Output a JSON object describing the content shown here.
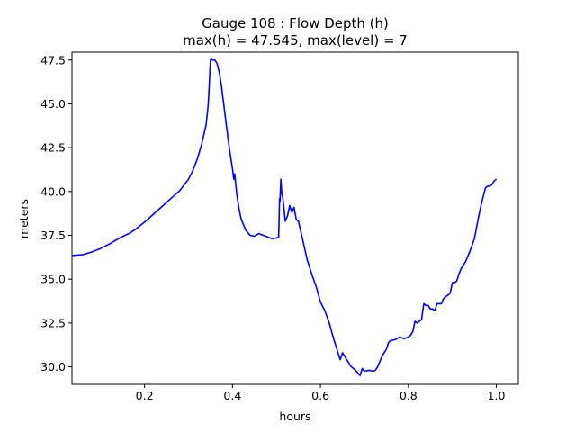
{
  "chart_data": {
    "type": "line",
    "title": "Gauge 108 : Flow Depth (h)",
    "subtitle": "max(h) =  47.545,    max(level) = 7",
    "xlabel": "hours",
    "ylabel": "meters",
    "xlim": [
      0.035,
      1.05
    ],
    "ylim": [
      29.0,
      47.95
    ],
    "xticks": [
      0.2,
      0.4,
      0.6,
      0.8,
      1.0
    ],
    "xtick_labels": [
      "0.2",
      "0.4",
      "0.6",
      "0.8",
      "1.0"
    ],
    "yticks": [
      30.0,
      32.5,
      35.0,
      37.5,
      40.0,
      42.5,
      45.0,
      47.5
    ],
    "ytick_labels": [
      "30.0",
      "32.5",
      "35.0",
      "37.5",
      "40.0",
      "42.5",
      "45.0",
      "47.5"
    ],
    "grid": false,
    "line_color": "#0000ff",
    "series": [
      {
        "x": [
          0.035,
          0.06,
          0.08,
          0.1,
          0.12,
          0.14,
          0.16,
          0.165,
          0.18,
          0.2,
          0.22,
          0.24,
          0.26,
          0.28,
          0.3,
          0.31,
          0.32,
          0.33,
          0.34,
          0.345,
          0.35,
          0.352,
          0.354,
          0.36,
          0.365,
          0.37,
          0.375,
          0.38,
          0.385,
          0.39,
          0.395,
          0.4,
          0.403,
          0.405,
          0.407,
          0.41,
          0.415,
          0.42,
          0.43,
          0.44,
          0.45,
          0.46,
          0.47,
          0.48,
          0.49,
          0.5,
          0.505,
          0.507,
          0.508,
          0.51,
          0.512,
          0.514,
          0.516,
          0.518,
          0.52,
          0.525,
          0.53,
          0.535,
          0.54,
          0.545,
          0.55,
          0.56,
          0.57,
          0.58,
          0.59,
          0.6,
          0.61,
          0.62,
          0.63,
          0.64,
          0.645,
          0.65,
          0.655,
          0.66,
          0.67,
          0.68,
          0.69,
          0.695,
          0.7,
          0.71,
          0.72,
          0.725,
          0.73,
          0.74,
          0.75,
          0.755,
          0.76,
          0.77,
          0.78,
          0.79,
          0.8,
          0.805,
          0.81,
          0.815,
          0.82,
          0.825,
          0.83,
          0.835,
          0.84,
          0.845,
          0.85,
          0.855,
          0.86,
          0.865,
          0.87,
          0.875,
          0.88,
          0.885,
          0.89,
          0.895,
          0.9,
          0.905,
          0.91,
          0.915,
          0.92,
          0.93,
          0.94,
          0.95,
          0.96,
          0.965,
          0.97,
          0.975,
          0.98,
          0.985,
          0.99,
          0.995,
          1.0
        ],
        "y": [
          36.35,
          36.4,
          36.55,
          36.75,
          37.0,
          37.3,
          37.55,
          37.6,
          37.85,
          38.25,
          38.7,
          39.15,
          39.6,
          40.05,
          40.7,
          41.2,
          41.85,
          42.7,
          43.8,
          45.0,
          47.5,
          47.55,
          47.5,
          47.5,
          47.3,
          46.8,
          46.0,
          45.0,
          44.0,
          43.0,
          42.1,
          41.3,
          40.7,
          41.0,
          40.5,
          39.8,
          39.0,
          38.4,
          37.8,
          37.5,
          37.45,
          37.6,
          37.5,
          37.4,
          37.3,
          37.35,
          37.4,
          39.6,
          39.4,
          40.7,
          39.9,
          39.7,
          39.3,
          38.8,
          38.3,
          38.6,
          39.2,
          38.8,
          39.1,
          38.4,
          38.3,
          37.2,
          36.1,
          35.3,
          34.6,
          33.7,
          33.2,
          32.5,
          31.6,
          30.8,
          30.4,
          30.8,
          30.6,
          30.4,
          30.0,
          29.8,
          29.5,
          29.9,
          29.75,
          29.8,
          29.75,
          29.8,
          30.0,
          30.6,
          31.0,
          31.4,
          31.5,
          31.55,
          31.7,
          31.6,
          31.7,
          31.8,
          32.0,
          32.6,
          32.5,
          32.6,
          32.7,
          33.6,
          33.5,
          33.5,
          33.3,
          33.3,
          33.2,
          33.6,
          33.6,
          33.6,
          33.9,
          34.0,
          34.1,
          34.2,
          34.8,
          34.8,
          34.9,
          35.3,
          35.6,
          36.0,
          36.6,
          37.3,
          38.6,
          39.2,
          39.7,
          40.2,
          40.3,
          40.3,
          40.4,
          40.6,
          40.7
        ]
      }
    ]
  }
}
